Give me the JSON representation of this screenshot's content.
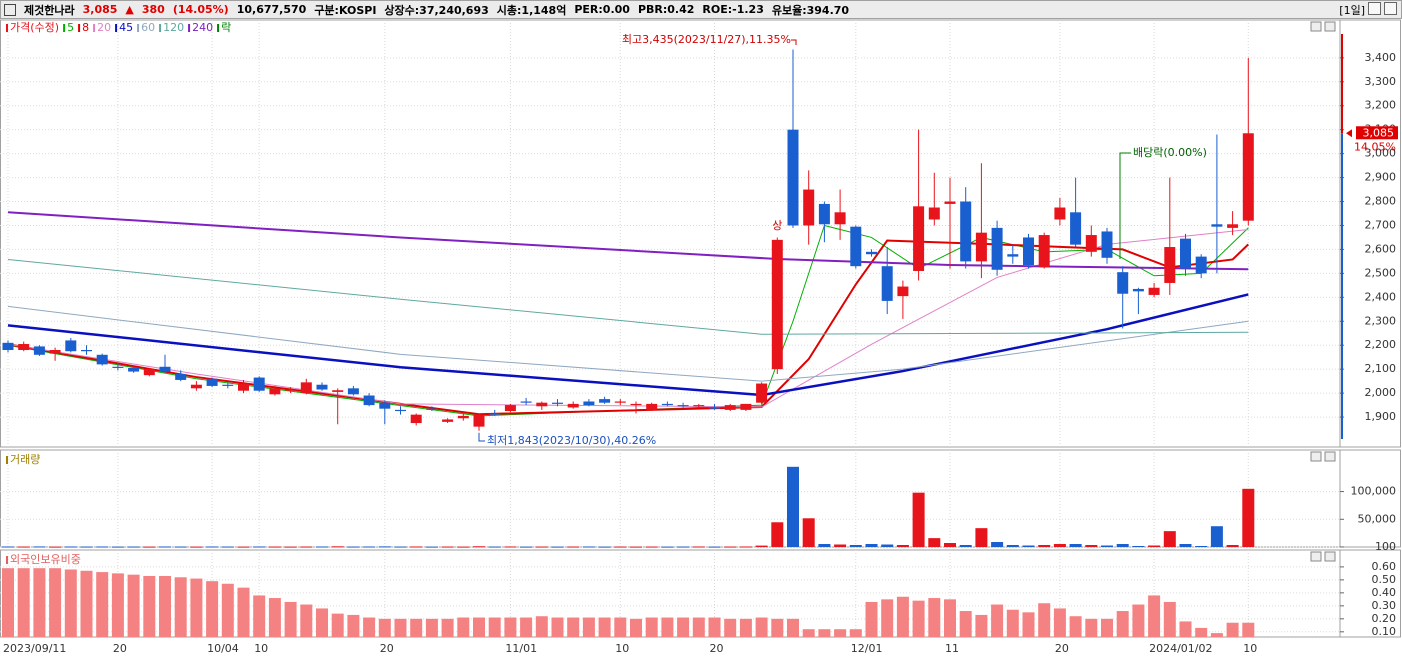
{
  "header": {
    "name": "제것한나라",
    "price": "3,085",
    "arrow": "▲",
    "change": "380",
    "change_pct": "(14.05%)",
    "volume": "10,677,570",
    "items": [
      "구분:KOSPI",
      "상장수:37,240,693",
      "시총:1,148억",
      "PER:0.00",
      "PBR:0.42",
      "ROE:-1.23",
      "유보율:394.70"
    ],
    "period": "[1일]"
  },
  "chart_data": [
    {
      "type": "candlestick",
      "legend_title": "가격(수정)",
      "legend_extra": "락",
      "up_color": "#e8141b",
      "down_color": "#1a5fd0",
      "categories": [
        "2023/09/11",
        null,
        null,
        null,
        null,
        null,
        null,
        "20",
        null,
        null,
        null,
        null,
        null,
        "10/04",
        null,
        null,
        "10",
        null,
        null,
        null,
        null,
        null,
        null,
        null,
        "20",
        null,
        null,
        null,
        null,
        null,
        null,
        null,
        "11/01",
        null,
        null,
        null,
        null,
        null,
        null,
        "10",
        null,
        null,
        null,
        null,
        null,
        "20",
        null,
        null,
        null,
        null,
        null,
        null,
        null,
        null,
        "12/01",
        null,
        null,
        null,
        null,
        null,
        "11",
        null,
        null,
        null,
        null,
        null,
        null,
        "20",
        null,
        null,
        null,
        null,
        null,
        "2024/01/02",
        null,
        null,
        null,
        null,
        null,
        "10"
      ],
      "open": [
        2210,
        2180,
        2195,
        2165,
        2220,
        2180,
        2160,
        2110,
        2105,
        2075,
        2110,
        2080,
        2020,
        2060,
        2035,
        2010,
        2065,
        1995,
        2010,
        2000,
        2035,
        2005,
        2020,
        1990,
        1960,
        1930,
        1875,
        1935,
        1880,
        1895,
        1860,
        1915,
        1925,
        1965,
        1945,
        1960,
        1940,
        1965,
        1975,
        1960,
        1950,
        1930,
        1955,
        1950,
        1945,
        1940,
        1930,
        1930,
        1960,
        2100,
        3100,
        2700,
        2790,
        2705,
        2695,
        2590,
        2530,
        2405,
        2510,
        2725,
        2790,
        2800,
        2550,
        2690,
        2580,
        2650,
        2525,
        2725,
        2755,
        2590,
        2675,
        2505,
        2435,
        2410,
        2460,
        2645,
        2570,
        2705,
        2690,
        2720
      ],
      "high": [
        2220,
        2215,
        2200,
        2190,
        2230,
        2200,
        2165,
        2125,
        2115,
        2105,
        2160,
        2095,
        2050,
        2065,
        2045,
        2055,
        2070,
        2030,
        2025,
        2060,
        2045,
        2020,
        2030,
        2000,
        1970,
        1945,
        1915,
        1945,
        1895,
        1925,
        1915,
        1930,
        1955,
        1980,
        1965,
        1975,
        1965,
        1975,
        1985,
        1975,
        1965,
        1960,
        1965,
        1960,
        1955,
        1955,
        1955,
        1955,
        2045,
        2650,
        3435,
        2930,
        2800,
        2850,
        2700,
        2600,
        2610,
        2470,
        3100,
        2920,
        2900,
        2860,
        2960,
        2720,
        2620,
        2665,
        2670,
        2815,
        2900,
        2700,
        2690,
        2530,
        2440,
        2460,
        2900,
        2665,
        2580,
        3080,
        2760,
        3400
      ],
      "low": [
        2170,
        2175,
        2155,
        2135,
        2170,
        2160,
        2115,
        2095,
        2085,
        2070,
        2085,
        2050,
        2010,
        2025,
        2020,
        2000,
        2005,
        1990,
        2000,
        1995,
        2010,
        1870,
        1990,
        1945,
        1870,
        1910,
        1865,
        1925,
        1875,
        1885,
        1843,
        1905,
        1920,
        1950,
        1930,
        1945,
        1935,
        1945,
        1955,
        1950,
        1915,
        1925,
        1945,
        1940,
        1940,
        1930,
        1925,
        1925,
        1955,
        2080,
        2690,
        2620,
        2630,
        2640,
        2520,
        2570,
        2330,
        2310,
        2470,
        2700,
        2520,
        2520,
        2480,
        2490,
        2540,
        2520,
        2520,
        2700,
        2610,
        2570,
        2540,
        2270,
        2330,
        2400,
        2410,
        2490,
        2480,
        2500,
        2660,
        2700
      ],
      "close": [
        2180,
        2205,
        2160,
        2180,
        2175,
        2175,
        2120,
        2105,
        2090,
        2100,
        2090,
        2055,
        2035,
        2030,
        2030,
        2040,
        2010,
        2020,
        2015,
        2045,
        2015,
        2012,
        1995,
        1950,
        1935,
        1925,
        1910,
        1930,
        1890,
        1905,
        1910,
        1910,
        1950,
        1960,
        1960,
        1955,
        1955,
        1950,
        1960,
        1965,
        1955,
        1955,
        1950,
        1945,
        1950,
        1935,
        1950,
        1955,
        2040,
        2640,
        2700,
        2850,
        2705,
        2755,
        2530,
        2580,
        2385,
        2445,
        2780,
        2775,
        2800,
        2550,
        2670,
        2515,
        2570,
        2535,
        2660,
        2775,
        2620,
        2660,
        2565,
        2415,
        2425,
        2440,
        2610,
        2520,
        2500,
        2695,
        2705,
        3085
      ],
      "moving_averages": [
        {
          "name": "5",
          "color": "#00b000",
          "width": 1,
          "x": [
            0,
            12,
            30,
            48,
            50,
            52,
            55,
            58,
            62,
            66,
            70,
            73,
            76,
            79
          ],
          "values": [
            2200,
            2060,
            1905,
            1950,
            2300,
            2700,
            2650,
            2520,
            2650,
            2590,
            2600,
            2490,
            2500,
            2690
          ]
        },
        {
          "name": "8",
          "color": "#e00000",
          "width": 2,
          "x": [
            0,
            12,
            30,
            48,
            51,
            54,
            56,
            63,
            71,
            74,
            78,
            79
          ],
          "values": [
            2204,
            2067,
            1912,
            1942,
            2142,
            2454,
            2637,
            2621,
            2600,
            2525,
            2558,
            2621
          ]
        },
        {
          "name": "20",
          "color": "#e080c8",
          "width": 1,
          "x": [
            0,
            12,
            25,
            48,
            55,
            63,
            70,
            79
          ],
          "values": [
            2204,
            2080,
            1955,
            1942,
            2204,
            2483,
            2621,
            2683
          ]
        },
        {
          "name": "45",
          "color": "#0a10c0",
          "width": 2.5,
          "x": [
            0,
            25,
            48,
            57,
            70,
            79
          ],
          "values": [
            2283,
            2108,
            1992,
            2092,
            2267,
            2412
          ]
        },
        {
          "name": "60",
          "color": "#8fa8c0",
          "width": 1,
          "x": [
            0,
            25,
            48,
            57,
            79
          ],
          "values": [
            2362,
            2162,
            2050,
            2100,
            2300
          ]
        },
        {
          "name": "120",
          "color": "#5fa8a0",
          "width": 1,
          "x": [
            0,
            25,
            48,
            79
          ],
          "values": [
            2558,
            2392,
            2246,
            2254
          ]
        },
        {
          "name": "240",
          "color": "#8020c0",
          "width": 2,
          "x": [
            0,
            25,
            49,
            60,
            79
          ],
          "values": [
            2755,
            2650,
            2560,
            2535,
            2517
          ]
        }
      ],
      "extra_color": "#008000",
      "annotations": {
        "high_note": "최고3,435(2023/11/27),11.35%",
        "low_note": "최저1,843(2023/10/30),40.26%",
        "ex_dividend": "배당락(0.00%)",
        "limit_up": "상",
        "last_price": "3,085",
        "last_change": "14.05%"
      },
      "ylim": [
        1775,
        3558
      ],
      "yticks": [
        {
          "value": 1900,
          "label": "1,900"
        },
        {
          "value": 2000,
          "label": "2,000"
        },
        {
          "value": 2100,
          "label": "2,100"
        },
        {
          "value": 2200,
          "label": "2,200"
        },
        {
          "value": 2300,
          "label": "2,300"
        },
        {
          "value": 2400,
          "label": "2,400"
        },
        {
          "value": 2500,
          "label": "2,500"
        },
        {
          "value": 2600,
          "label": "2,600"
        },
        {
          "value": 2700,
          "label": "2,700"
        },
        {
          "value": 2800,
          "label": "2,800"
        },
        {
          "value": 2900,
          "label": "2,900"
        },
        {
          "value": 3000,
          "label": "3,000"
        },
        {
          "value": 3100,
          "label": "3,100"
        },
        {
          "value": 3200,
          "label": "3,200"
        },
        {
          "value": 3300,
          "label": "3,300"
        },
        {
          "value": 3400,
          "label": "3,400"
        }
      ],
      "grid": true
    },
    {
      "type": "bar",
      "title": "거래량",
      "title_color": "#a08000",
      "values": [
        900,
        800,
        1000,
        700,
        900,
        800,
        900,
        700,
        800,
        700,
        900,
        800,
        700,
        900,
        800,
        700,
        900,
        800,
        700,
        800,
        900,
        1200,
        800,
        900,
        1100,
        800,
        900,
        700,
        800,
        700,
        1300,
        800,
        900,
        700,
        800,
        700,
        800,
        900,
        700,
        800,
        700,
        800,
        700,
        800,
        900,
        700,
        800,
        900,
        2500,
        44600,
        144700,
        51800,
        5400,
        4500,
        3600,
        5400,
        4500,
        3600,
        98000,
        16000,
        7200,
        3600,
        34000,
        9000,
        3600,
        2700,
        3600,
        5400,
        5400,
        3600,
        2700,
        5400,
        1800,
        2700,
        28600,
        5400,
        1800,
        37500,
        3600,
        105000
      ],
      "ylim": [
        0,
        175000
      ],
      "yticks": [
        100,
        {
          "value": 50000,
          "label": "50,000"
        },
        {
          "value": 100000,
          "label": "100,000"
        }
      ],
      "grid": true
    },
    {
      "type": "bar",
      "title": "외국인보유비중",
      "title_color": "#e06060",
      "color": "#f58282",
      "values": [
        0.59,
        0.59,
        0.59,
        0.59,
        0.58,
        0.57,
        0.56,
        0.55,
        0.54,
        0.53,
        0.53,
        0.52,
        0.51,
        0.49,
        0.47,
        0.44,
        0.38,
        0.36,
        0.33,
        0.31,
        0.28,
        0.24,
        0.23,
        0.21,
        0.2,
        0.2,
        0.2,
        0.2,
        0.2,
        0.21,
        0.21,
        0.21,
        0.21,
        0.21,
        0.22,
        0.21,
        0.21,
        0.21,
        0.21,
        0.21,
        0.2,
        0.21,
        0.21,
        0.21,
        0.21,
        0.21,
        0.2,
        0.2,
        0.21,
        0.2,
        0.2,
        0.12,
        0.12,
        0.12,
        0.12,
        0.33,
        0.35,
        0.37,
        0.34,
        0.36,
        0.35,
        0.26,
        0.23,
        0.31,
        0.27,
        0.25,
        0.32,
        0.28,
        0.22,
        0.2,
        0.2,
        0.26,
        0.31,
        0.38,
        0.33,
        0.18,
        0.13,
        0.09,
        0.17,
        0.17
      ],
      "ylim": [
        0.06,
        0.73
      ],
      "yticks": [
        {
          "value": 0.1,
          "label": "0.10"
        },
        {
          "value": 0.2,
          "label": "0.20"
        },
        {
          "value": 0.3,
          "label": "0.30"
        },
        {
          "value": 0.4,
          "label": "0.40"
        },
        {
          "value": 0.5,
          "label": "0.50"
        },
        {
          "value": 0.6,
          "label": "0.60"
        }
      ],
      "grid": true
    }
  ]
}
